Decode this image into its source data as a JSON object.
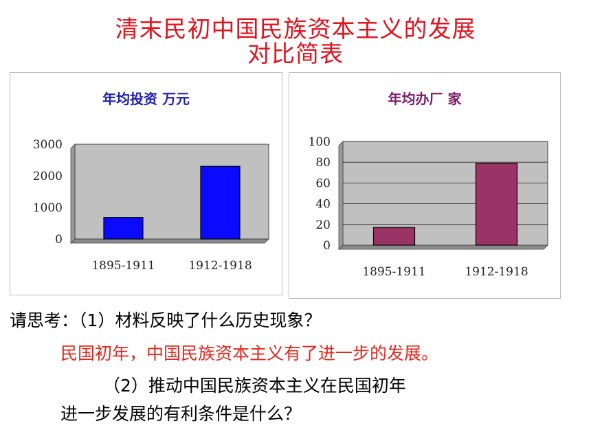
{
  "slide": {
    "title_line1": "清末民初中国民族资本主义的发展",
    "title_line2": "对比简表",
    "question1": "请思考：（1）材料反映了什么历史现象？",
    "answer1": "民国初年，中国民族资本主义有了进一步的发展。",
    "question2_line1": "（2）推动中国民族资本主义在民国初年",
    "question2_line2": "进一步发展的有利条件是什么？"
  },
  "chart_data": [
    {
      "type": "bar",
      "title": "年均投资  万元",
      "categories": [
        "1895-1911",
        "1912-1918"
      ],
      "values": [
        680,
        2300
      ],
      "ylim": [
        0,
        3000
      ],
      "yticks": [
        "0",
        "1000",
        "2000",
        "3000"
      ],
      "grid": false,
      "bar_color": "#0a0aff",
      "plot_bg": "#c0c0c0"
    },
    {
      "type": "bar",
      "title": "年均办厂  家",
      "categories": [
        "1895-1911",
        "1912-1918"
      ],
      "values": [
        17,
        79
      ],
      "ylim": [
        0,
        100
      ],
      "yticks": [
        "0",
        "20",
        "40",
        "60",
        "80",
        "100"
      ],
      "grid": true,
      "bar_color": "#9a3366",
      "plot_bg": "#c0c0c0"
    }
  ]
}
